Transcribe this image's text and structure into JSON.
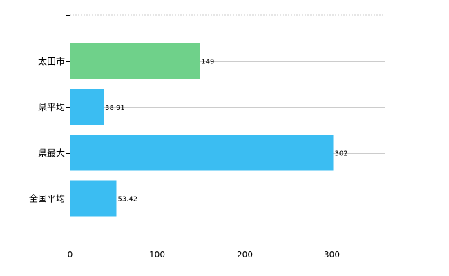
{
  "chart_data": {
    "type": "bar",
    "orientation": "horizontal",
    "categories": [
      "太田市",
      "県平均",
      "県最大",
      "全国平均"
    ],
    "values": [
      149,
      38.91,
      302,
      53.42
    ],
    "value_labels": [
      "149",
      "38.91",
      "302",
      "53.42"
    ],
    "bar_colors": [
      "#6fd18a",
      "#3bbdf2",
      "#3bbdf2",
      "#3bbdf2"
    ],
    "xlim": [
      0,
      360
    ],
    "xticks": [
      0,
      100,
      200,
      300
    ],
    "xtick_labels": [
      "0",
      "100",
      "200",
      "300"
    ],
    "grid": true,
    "legend": "none"
  }
}
